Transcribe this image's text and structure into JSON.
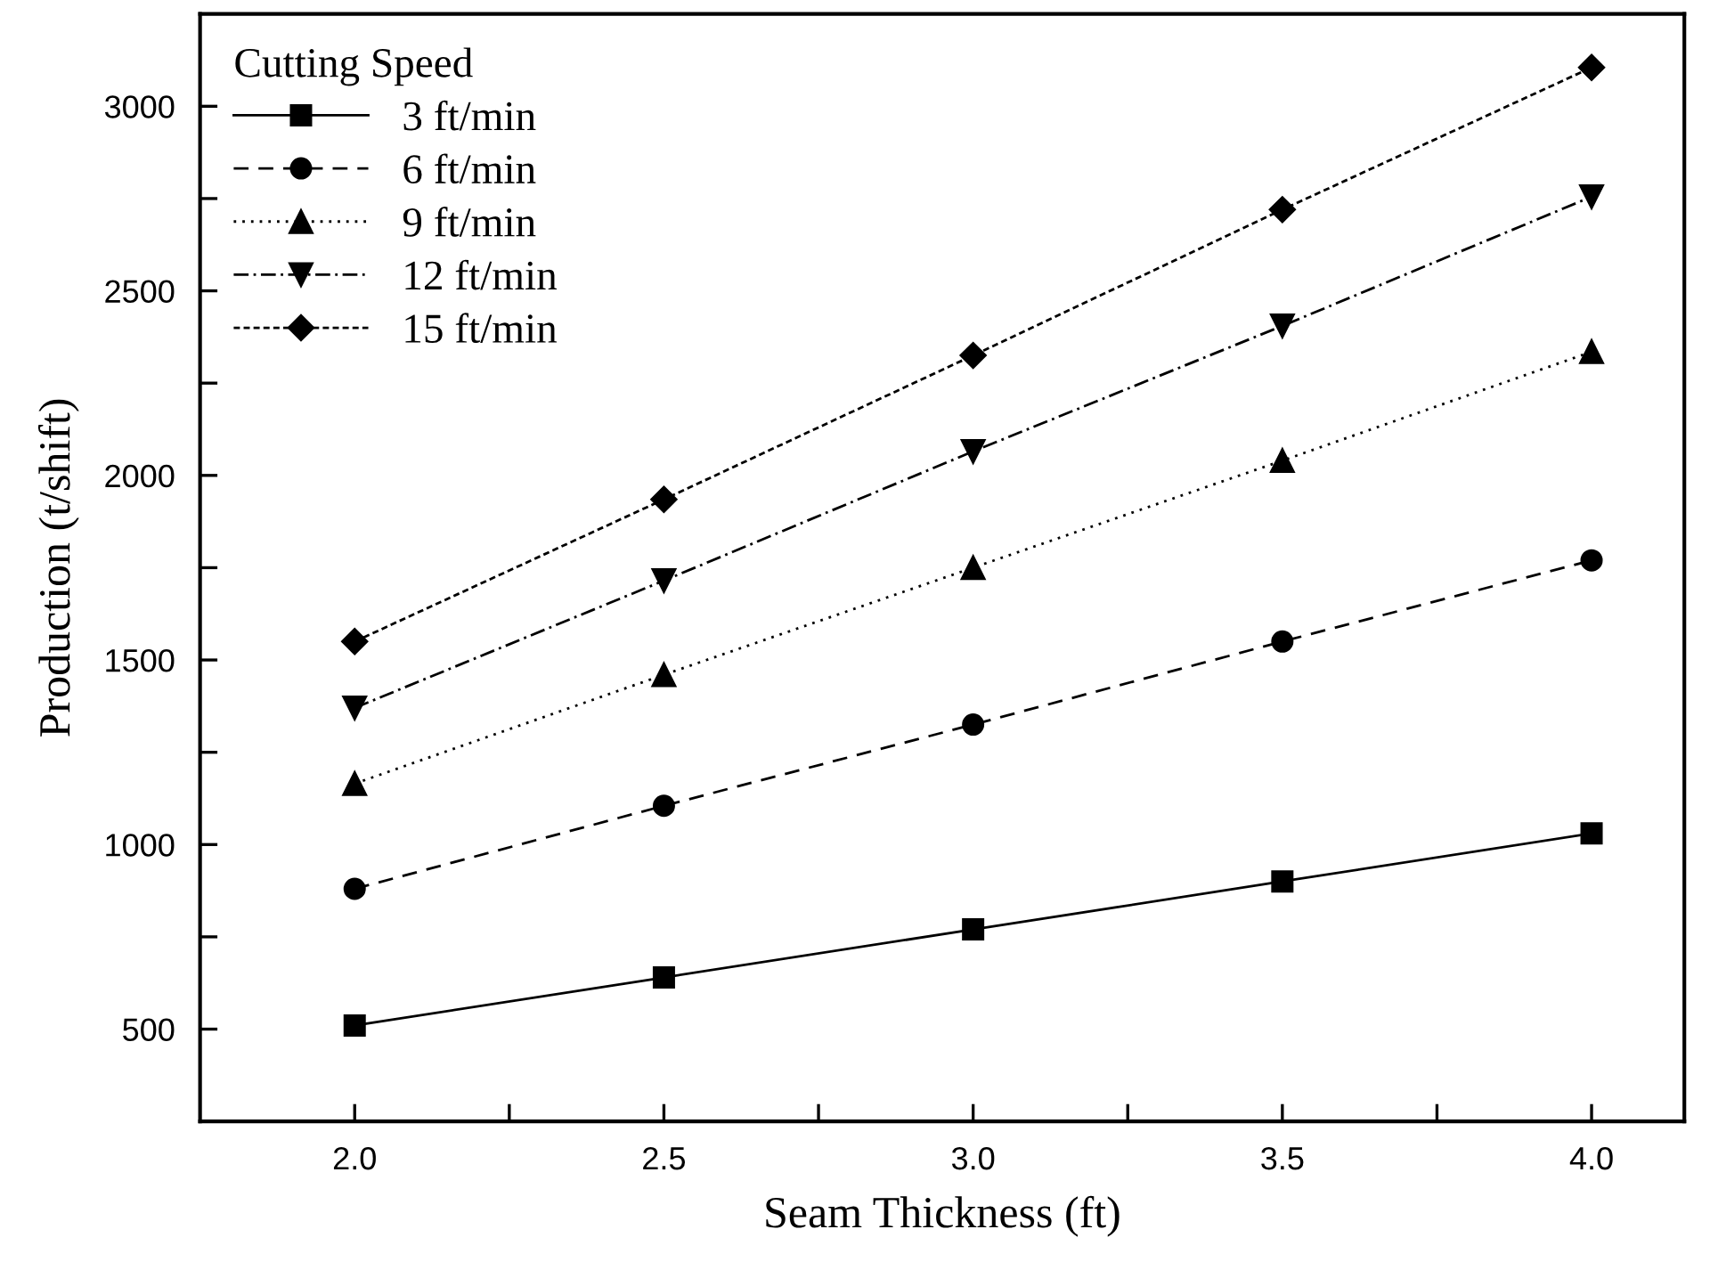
{
  "chart_data": {
    "type": "line",
    "xlabel": "Seam Thickness (ft)",
    "ylabel": "Production (t/shift)",
    "legend_title": "Cutting Speed",
    "x": [
      2.0,
      2.5,
      3.0,
      3.5,
      4.0
    ],
    "series": [
      {
        "name": "3 ft/min",
        "color": "#000000",
        "marker": "square",
        "line_style": "solid",
        "values": [
          510,
          640,
          770,
          900,
          1030
        ]
      },
      {
        "name": "6 ft/min",
        "color": "#000000",
        "marker": "circle",
        "line_style": "dashed",
        "values": [
          880,
          1105,
          1325,
          1550,
          1770
        ]
      },
      {
        "name": "9 ft/min",
        "color": "#000000",
        "marker": "triangle",
        "line_style": "dotted",
        "values": [
          1165,
          1460,
          1750,
          2040,
          2335
        ]
      },
      {
        "name": "12 ft/min",
        "color": "#000000",
        "marker": "triangle_down",
        "line_style": "dashdot",
        "values": [
          1370,
          1715,
          2065,
          2405,
          2755
        ]
      },
      {
        "name": "15 ft/min",
        "color": "#000000",
        "marker": "diamond",
        "line_style": "shortdash",
        "values": [
          1550,
          1935,
          2325,
          2720,
          3105
        ]
      }
    ],
    "xlim": [
      1.75,
      4.15
    ],
    "ylim": [
      250,
      3250
    ],
    "xticks": [
      {
        "value": 2,
        "label": "2.0"
      },
      {
        "value": 2.25,
        "label": null
      },
      2.5,
      {
        "value": 2.75,
        "label": null
      },
      {
        "value": 3,
        "label": "3.0"
      },
      {
        "value": 3.25,
        "label": null
      },
      3.5,
      {
        "value": 3.75,
        "label": null
      },
      {
        "value": 4,
        "label": "4.0"
      }
    ],
    "yticks": [
      500,
      {
        "value": 750,
        "label": null
      },
      1000,
      {
        "value": 1250,
        "label": null
      },
      1500,
      {
        "value": 1750,
        "label": null
      },
      2000,
      {
        "value": 2250,
        "label": null
      },
      2500,
      {
        "value": 2750,
        "label": null
      },
      3000
    ],
    "grid": false,
    "legend": "top left"
  }
}
